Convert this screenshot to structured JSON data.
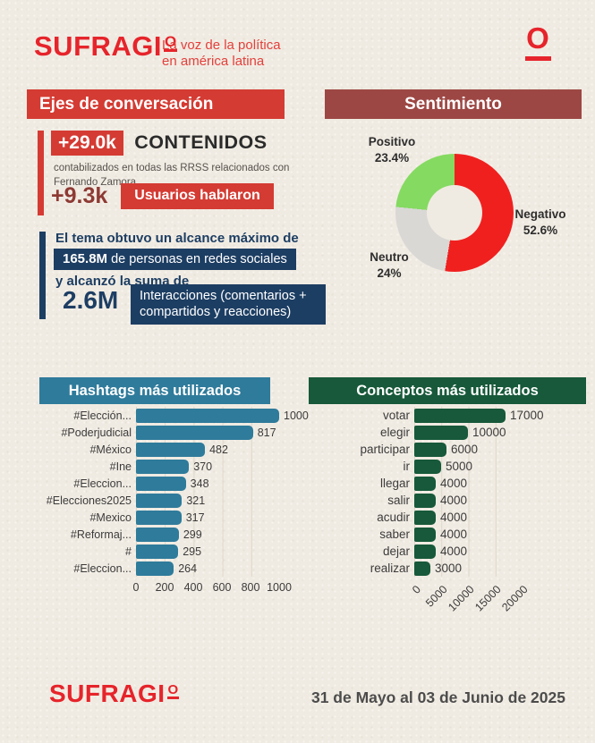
{
  "brand": {
    "main": "SUFRAGI",
    "o": "O",
    "tagline_line1": "La voz de la política",
    "tagline_line2": "en américa latina",
    "mark": "O"
  },
  "colors": {
    "logo_red": "#e6242b",
    "banner_red": "#d43b33",
    "banner_maroon": "#9d4744",
    "navy": "#1d3e63",
    "teal": "#2f7b9b",
    "dark_green": "#17593a",
    "paper": "#f0ebe2"
  },
  "sections": {
    "ejes": {
      "title": "Ejes de conversación",
      "stat1_value": "+29.0k",
      "stat1_label": "CONTENIDOS",
      "stat1_note": "contabilizados en todas las RRSS relacionados con Fernando Zamora",
      "stat2_value": "+9.3k",
      "stat2_label": "Usuarios hablaron",
      "reach_intro": "El tema obtuvo un alcance máximo de",
      "reach_value": "165.8M",
      "reach_text": "de personas en redes sociales",
      "reach_more": "y alcanzó la suma de",
      "interactions_value": "2.6M",
      "interactions_label": "Interacciones (comentarios + compartidos y reacciones)"
    }
  },
  "footer": {
    "date_range": "31 de Mayo al 03 de Junio de 2025"
  },
  "chart_data": [
    {
      "type": "pie",
      "donut": true,
      "title": "Sentimiento",
      "labels": [
        "Negativo",
        "Neutro",
        "Positivo"
      ],
      "values": [
        52.6,
        24,
        23.4
      ],
      "value_labels": [
        "52.6%",
        "24%",
        "23.4%"
      ],
      "colors": [
        "#f0201f",
        "#d9d8d5",
        "#85da61"
      ],
      "start": "top",
      "direction": "clockwise"
    },
    {
      "type": "bar",
      "orientation": "horizontal",
      "title": "Hashtags más utilizados",
      "categories": [
        "#Elección...",
        "#Poderjudicial",
        "#México",
        "#Ine",
        "#Eleccion...",
        "#Elecciones2025",
        "#Mexico",
        "#Reformaj...",
        "#",
        "#Eleccion..."
      ],
      "values": [
        1000,
        817,
        482,
        370,
        348,
        321,
        317,
        299,
        295,
        264
      ],
      "xlim": [
        0,
        1000
      ],
      "xticks": [
        "0",
        "200",
        "400",
        "600",
        "800",
        "1000"
      ],
      "bar_color": "#2f7b9b",
      "grid": true,
      "legend": false
    },
    {
      "type": "bar",
      "orientation": "horizontal",
      "title": "Conceptos más utilizados",
      "categories": [
        "votar",
        "elegir",
        "participar",
        "ir",
        "llegar",
        "salir",
        "acudir",
        "saber",
        "dejar",
        "realizar"
      ],
      "values": [
        17000,
        10000,
        6000,
        5000,
        4000,
        4000,
        4000,
        4000,
        4000,
        3000
      ],
      "xlim": [
        0,
        20000
      ],
      "xticks": [
        "0",
        "5000",
        "10000",
        "15000",
        "20000"
      ],
      "bar_color": "#17593a",
      "grid": true,
      "legend": false,
      "xtick_rotation": 45
    }
  ]
}
